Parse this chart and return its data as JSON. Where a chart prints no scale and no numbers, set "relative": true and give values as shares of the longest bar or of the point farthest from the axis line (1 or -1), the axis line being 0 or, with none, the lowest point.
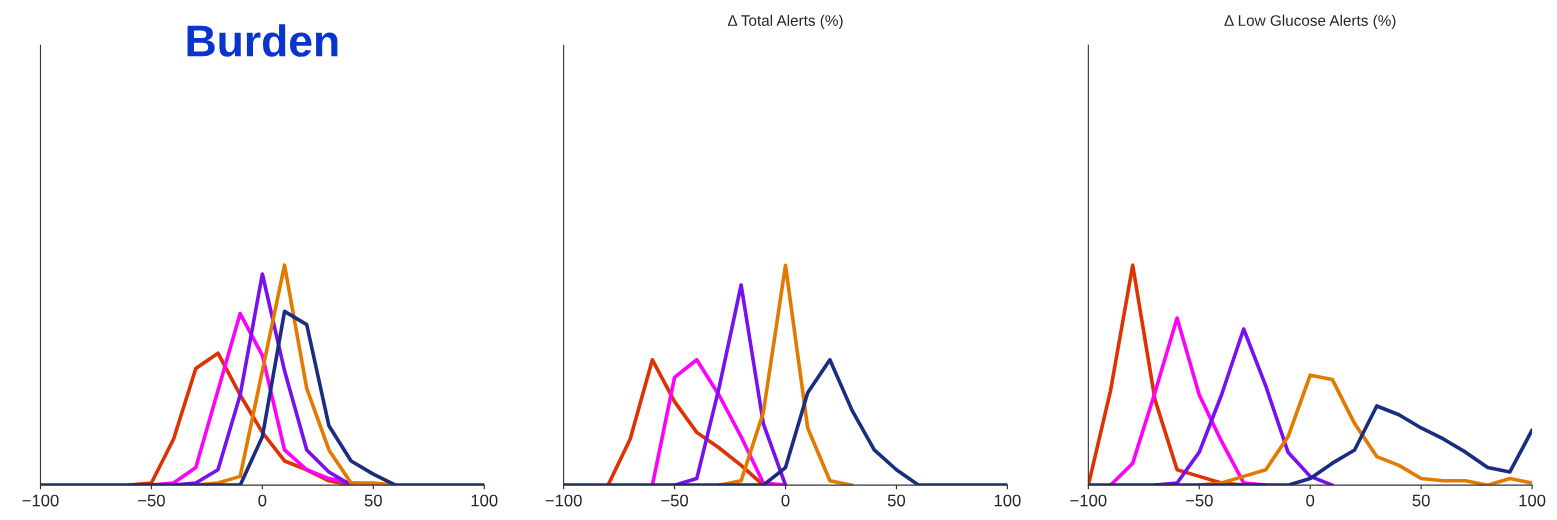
{
  "chart_data": [
    {
      "type": "line",
      "title": "Burden",
      "relative": true,
      "x": [
        -100,
        -90,
        -80,
        -70,
        -60,
        -50,
        -40,
        -30,
        -20,
        -10,
        0,
        10,
        20,
        30,
        40,
        50,
        60,
        70,
        80,
        90,
        100
      ],
      "xlim": [
        -100,
        100
      ],
      "xticks": [
        -100,
        -50,
        0,
        50,
        100
      ],
      "grid": false,
      "series": [
        {
          "color": "#dd3300",
          "values": [
            null,
            null,
            null,
            null,
            0,
            0.01,
            0.21,
            0.53,
            0.6,
            0.41,
            0.24,
            0.11,
            0.07,
            0.02,
            0,
            null,
            null,
            null,
            null,
            null,
            null
          ]
        },
        {
          "color": "#ff00ff",
          "values": [
            null,
            null,
            null,
            null,
            null,
            0,
            0.01,
            0.08,
            0.43,
            0.78,
            0.59,
            0.16,
            0.07,
            0.03,
            0.01,
            0,
            null,
            null,
            null,
            null,
            null
          ]
        },
        {
          "color": "#7711ee",
          "values": [
            null,
            null,
            null,
            null,
            null,
            null,
            0,
            0.01,
            0.07,
            0.41,
            0.96,
            0.52,
            0.16,
            0.06,
            0,
            null,
            null,
            null,
            null,
            null,
            null
          ]
        },
        {
          "color": "#e07b00",
          "values": [
            null,
            null,
            null,
            null,
            null,
            null,
            null,
            0,
            0.01,
            0.04,
            0.52,
            1.0,
            0.44,
            0.16,
            0.01,
            0.01,
            0,
            null,
            null,
            null,
            null
          ]
        },
        {
          "color": "#1a2d80",
          "values": [
            0,
            0,
            0,
            0,
            0,
            0,
            0,
            0,
            0,
            0,
            0.22,
            0.79,
            0.73,
            0.27,
            0.11,
            0.05,
            0,
            0,
            0,
            0,
            0
          ]
        }
      ]
    },
    {
      "type": "line",
      "title": "Δ Total Alerts (%)",
      "relative": true,
      "x": [
        -100,
        -90,
        -80,
        -70,
        -60,
        -50,
        -40,
        -30,
        -20,
        -10,
        0,
        10,
        20,
        30,
        40,
        50,
        60,
        70,
        80,
        90,
        100
      ],
      "xlim": [
        -100,
        100
      ],
      "xticks": [
        -100,
        -50,
        0,
        50,
        100
      ],
      "grid": false,
      "series": [
        {
          "color": "#dd3300",
          "values": [
            null,
            null,
            0,
            0.21,
            0.57,
            0.38,
            0.24,
            0.17,
            0.09,
            0,
            null,
            null,
            null,
            null,
            null,
            null,
            null,
            null,
            null,
            null,
            null
          ]
        },
        {
          "color": "#ff00ff",
          "values": [
            null,
            null,
            null,
            null,
            0,
            0.49,
            0.57,
            0.41,
            0.22,
            0.01,
            0,
            null,
            null,
            null,
            null,
            null,
            null,
            null,
            null,
            null,
            null
          ]
        },
        {
          "color": "#7711ee",
          "values": [
            null,
            null,
            null,
            null,
            null,
            0,
            0.03,
            0.44,
            0.91,
            0.28,
            0,
            null,
            null,
            null,
            null,
            null,
            null,
            null,
            null,
            null,
            null
          ]
        },
        {
          "color": "#e07b00",
          "values": [
            null,
            null,
            null,
            null,
            null,
            null,
            null,
            0,
            0.02,
            0.33,
            1.0,
            0.26,
            0.02,
            0,
            null,
            null,
            null,
            null,
            null,
            null,
            null
          ]
        },
        {
          "color": "#1a2d80",
          "values": [
            0,
            0,
            0,
            0,
            0,
            0,
            0,
            0,
            0,
            0,
            0.08,
            0.42,
            0.57,
            0.34,
            0.16,
            0.07,
            0,
            0,
            0,
            0,
            0
          ]
        }
      ]
    },
    {
      "type": "line",
      "title": "Δ Low Glucose Alerts (%)",
      "relative": true,
      "x": [
        -100,
        -90,
        -80,
        -70,
        -60,
        -50,
        -40,
        -30,
        -20,
        -10,
        0,
        10,
        20,
        30,
        40,
        50,
        60,
        70,
        80,
        90,
        100
      ],
      "xlim": [
        -100,
        100
      ],
      "xticks": [
        -100,
        -50,
        0,
        50,
        100
      ],
      "grid": false,
      "series": [
        {
          "color": "#dd3300",
          "values": [
            0,
            0.43,
            1.0,
            0.39,
            0.07,
            0.04,
            0.01,
            0,
            null,
            null,
            null,
            null,
            null,
            null,
            null,
            null,
            null,
            null,
            null,
            null,
            null
          ]
        },
        {
          "color": "#ff00ff",
          "values": [
            null,
            0,
            0.1,
            0.42,
            0.76,
            0.41,
            0.2,
            0.01,
            0,
            null,
            null,
            null,
            null,
            null,
            null,
            null,
            null,
            null,
            null,
            null,
            null
          ]
        },
        {
          "color": "#7711ee",
          "values": [
            null,
            null,
            null,
            0,
            0.01,
            0.15,
            0.41,
            0.71,
            0.45,
            0.15,
            0.04,
            0,
            null,
            null,
            null,
            null,
            null,
            null,
            null,
            null,
            null
          ]
        },
        {
          "color": "#e07b00",
          "values": [
            null,
            null,
            null,
            null,
            null,
            0,
            0.01,
            0.04,
            0.07,
            0.22,
            0.5,
            0.48,
            0.28,
            0.13,
            0.09,
            0.03,
            0.02,
            0.02,
            0,
            0.03,
            0.01
          ]
        },
        {
          "color": "#1a2d80",
          "values": [
            0,
            0,
            0,
            0,
            0,
            0,
            0,
            0,
            0,
            0,
            0.03,
            0.1,
            0.16,
            0.36,
            0.32,
            0.26,
            0.21,
            0.15,
            0.08,
            0.06,
            0.25
          ]
        }
      ]
    }
  ]
}
